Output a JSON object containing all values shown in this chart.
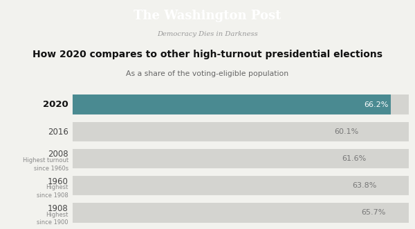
{
  "title": "How 2020 compares to other high-turnout presidential elections",
  "subtitle": "As a share of the voting-eligible population",
  "wapo_title": "The Washington Post",
  "wapo_subtitle": "Democracy Dies in Darkness",
  "labels_main": [
    "2020",
    "2016",
    "2008",
    "1960",
    "1908"
  ],
  "labels_sub": [
    "",
    "",
    "Highest turnout\nsince 1960s",
    "Highest\nsince 1908",
    "Highest\nsince 1900"
  ],
  "values": [
    66.2,
    60.1,
    61.6,
    63.8,
    65.7
  ],
  "value_labels": [
    "66.2%",
    "60.1%",
    "61.6%",
    "63.8%",
    "65.7%"
  ],
  "bar_colors": [
    "#4a8a91",
    "#d4d4d0",
    "#d4d4d0",
    "#d4d4d0",
    "#d4d4d0"
  ],
  "value_label_colors": [
    "#ffffff",
    "#777777",
    "#777777",
    "#777777",
    "#777777"
  ],
  "label_colors_main": [
    "#111111",
    "#444444",
    "#444444",
    "#444444",
    "#444444"
  ],
  "label_bold": [
    true,
    false,
    false,
    false,
    false
  ],
  "background_color": "#f2f2ee",
  "header_bg": "#0a0a0a",
  "wapo_title_color": "#ffffff",
  "wapo_subtitle_color": "#999999",
  "title_color": "#111111",
  "subtitle_color": "#666666",
  "xlim_max": 70,
  "figsize": [
    6.0,
    3.32
  ],
  "dpi": 100
}
